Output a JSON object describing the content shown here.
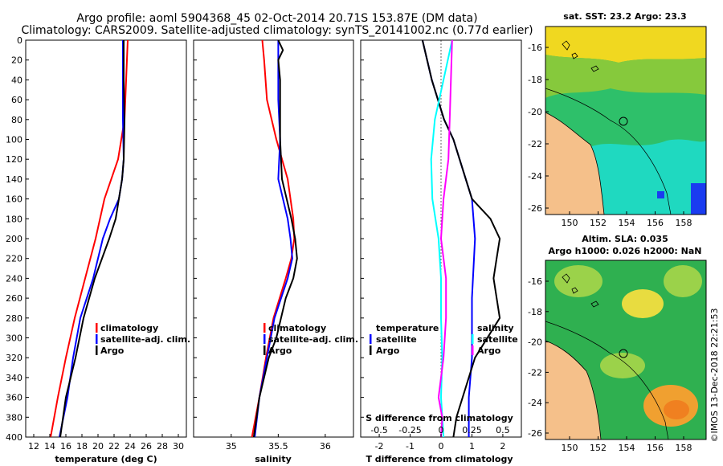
{
  "title": {
    "line1": "Argo profile: aoml 5904368_45 02-Oct-2014 20.71S 153.87E (DM data)",
    "line2": "Climatology: CARS2009. Satellite-adjusted climatology: synTS_20141002.nc (0.77d earlier)"
  },
  "depth_ticks": [
    "0",
    "20",
    "40",
    "60",
    "80",
    "100",
    "120",
    "140",
    "160",
    "180",
    "200",
    "220",
    "240",
    "260",
    "280",
    "300",
    "320",
    "340",
    "360",
    "380",
    "400"
  ],
  "colors": {
    "climatology": "#ff0000",
    "satellite": "#0000ff",
    "argo": "#000000",
    "magenta": "#ff00ff",
    "cyan": "#00ffff",
    "land": "#f5c08a"
  },
  "chart_data": [
    {
      "type": "line",
      "id": "temperature",
      "xlabel": "temperature (deg C)",
      "xlim": [
        11,
        31
      ],
      "ylim": [
        0,
        400
      ],
      "x_ticks": [
        "12",
        "14",
        "16",
        "18",
        "20",
        "22",
        "24",
        "26",
        "28",
        "30"
      ],
      "legend": [
        "climatology",
        "satellite-adj. clim.",
        "Argo"
      ],
      "series": [
        {
          "name": "climatology",
          "color": "#ff0000",
          "depth": [
            0,
            40,
            80,
            120,
            160,
            200,
            240,
            280,
            320,
            360,
            400
          ],
          "values": [
            23.7,
            23.5,
            23.3,
            22.5,
            20.8,
            19.7,
            18.4,
            17.1,
            16.0,
            15.0,
            14.1
          ]
        },
        {
          "name": "satellite-adj. clim.",
          "color": "#0000ff",
          "depth": [
            0,
            40,
            80,
            120,
            140,
            160,
            180,
            200,
            240,
            280,
            320,
            360,
            400
          ],
          "values": [
            23.1,
            23.1,
            23.1,
            23.2,
            23.0,
            22.6,
            21.5,
            20.6,
            19.4,
            17.8,
            16.9,
            16.2,
            15.2
          ]
        },
        {
          "name": "Argo",
          "color": "#000000",
          "depth": [
            0,
            40,
            80,
            120,
            140,
            160,
            180,
            200,
            240,
            280,
            300,
            320,
            360,
            400
          ],
          "values": [
            23.2,
            23.2,
            23.3,
            23.2,
            23.0,
            22.6,
            22.2,
            21.4,
            19.6,
            18.2,
            17.7,
            17.2,
            16.0,
            15.3
          ]
        }
      ]
    },
    {
      "type": "line",
      "id": "salinity",
      "xlabel": "salinity",
      "xlim": [
        34.6,
        36.3
      ],
      "ylim": [
        0,
        400
      ],
      "x_ticks": [
        "35",
        "35.5",
        "36"
      ],
      "legend": [
        "climatology",
        "satellite-adj. clim.",
        "Argo"
      ],
      "series": [
        {
          "name": "climatology",
          "color": "#ff0000",
          "depth": [
            0,
            20,
            60,
            100,
            140,
            180,
            200,
            220,
            240,
            280,
            320,
            360,
            400
          ],
          "values": [
            35.33,
            35.35,
            35.38,
            35.48,
            35.6,
            35.66,
            35.67,
            35.64,
            35.58,
            35.45,
            35.37,
            35.3,
            35.22
          ]
        },
        {
          "name": "satellite-adj. clim.",
          "color": "#0000ff",
          "depth": [
            0,
            20,
            60,
            100,
            140,
            180,
            200,
            220,
            240,
            280,
            320,
            360,
            400
          ],
          "values": [
            35.5,
            35.5,
            35.5,
            35.52,
            35.5,
            35.6,
            35.63,
            35.65,
            35.6,
            35.46,
            35.38,
            35.3,
            35.25
          ]
        },
        {
          "name": "Argo",
          "color": "#000000",
          "depth": [
            0,
            10,
            20,
            40,
            60,
            80,
            100,
            140,
            180,
            200,
            220,
            240,
            260,
            300,
            320,
            360,
            380,
            400
          ],
          "values": [
            35.5,
            35.55,
            35.5,
            35.52,
            35.52,
            35.52,
            35.52,
            35.54,
            35.64,
            35.68,
            35.7,
            35.66,
            35.58,
            35.48,
            35.4,
            35.3,
            35.27,
            35.24
          ]
        }
      ]
    },
    {
      "type": "line",
      "id": "difference",
      "xlabel": "T difference from climatology",
      "xlabel2": "S difference from climatology",
      "xlim": [
        -2.6,
        2.6
      ],
      "ylim": [
        0,
        400
      ],
      "x_ticks": [
        "-2",
        "-1",
        "0",
        "1",
        "2"
      ],
      "x_ticks_s": [
        "-0.5",
        "-0.25",
        "0",
        "0.25",
        "0.5"
      ],
      "legend_left": [
        "temperature",
        "satellite",
        "Argo"
      ],
      "legend_right": [
        "salinity",
        "satellite",
        "Argo"
      ],
      "series": [
        {
          "name": "T satellite",
          "color": "#0000ff",
          "depth": [
            0,
            40,
            80,
            100,
            120,
            140,
            160,
            200,
            260,
            320,
            360,
            400
          ],
          "values": [
            -0.6,
            -0.3,
            0.1,
            0.4,
            0.6,
            0.8,
            1.0,
            1.1,
            1.0,
            1.0,
            0.9,
            0.9
          ]
        },
        {
          "name": "T Argo",
          "color": "#000000",
          "depth": [
            0,
            40,
            80,
            100,
            120,
            160,
            180,
            200,
            220,
            240,
            280,
            320,
            360,
            380,
            400
          ],
          "values": [
            -0.6,
            -0.3,
            0.1,
            0.4,
            0.6,
            1.0,
            1.6,
            1.9,
            1.8,
            1.7,
            1.9,
            1.1,
            0.7,
            0.5,
            0.4
          ]
        },
        {
          "name": "S satellite",
          "color": "#00ffff",
          "depth": [
            0,
            40,
            80,
            120,
            160,
            200,
            240,
            280,
            320,
            360,
            400
          ],
          "values": [
            0.09,
            0.02,
            -0.05,
            -0.08,
            -0.07,
            -0.02,
            0.0,
            0.0,
            0.01,
            0.0,
            0.02
          ]
        },
        {
          "name": "S Argo",
          "color": "#ff00ff",
          "depth": [
            0,
            40,
            80,
            120,
            160,
            200,
            240,
            280,
            320,
            340,
            360,
            380,
            400
          ],
          "values": [
            0.09,
            0.08,
            0.07,
            0.06,
            0.02,
            0.0,
            0.04,
            0.04,
            0.02,
            0.0,
            -0.02,
            0.01,
            0.0
          ]
        }
      ]
    }
  ],
  "maps": {
    "sst": {
      "title": "sat. SST: 23.2  Argo: 23.3",
      "y_ticks": [
        "-16",
        "-18",
        "-20",
        "-22",
        "-24",
        "-26"
      ],
      "x_ticks": [
        "150",
        "152",
        "154",
        "156",
        "158"
      ]
    },
    "sla": {
      "title_line1": "Altim. SLA: 0.035",
      "title_line2": "Argo h1000: 0.026 h2000: NaN",
      "y_ticks": [
        "-16",
        "-18",
        "-20",
        "-22",
        "-24",
        "-26"
      ],
      "x_ticks": [
        "150",
        "152",
        "154",
        "156",
        "158"
      ]
    }
  },
  "credit": "©IMOS 13-Dec-2018 22:21:53"
}
